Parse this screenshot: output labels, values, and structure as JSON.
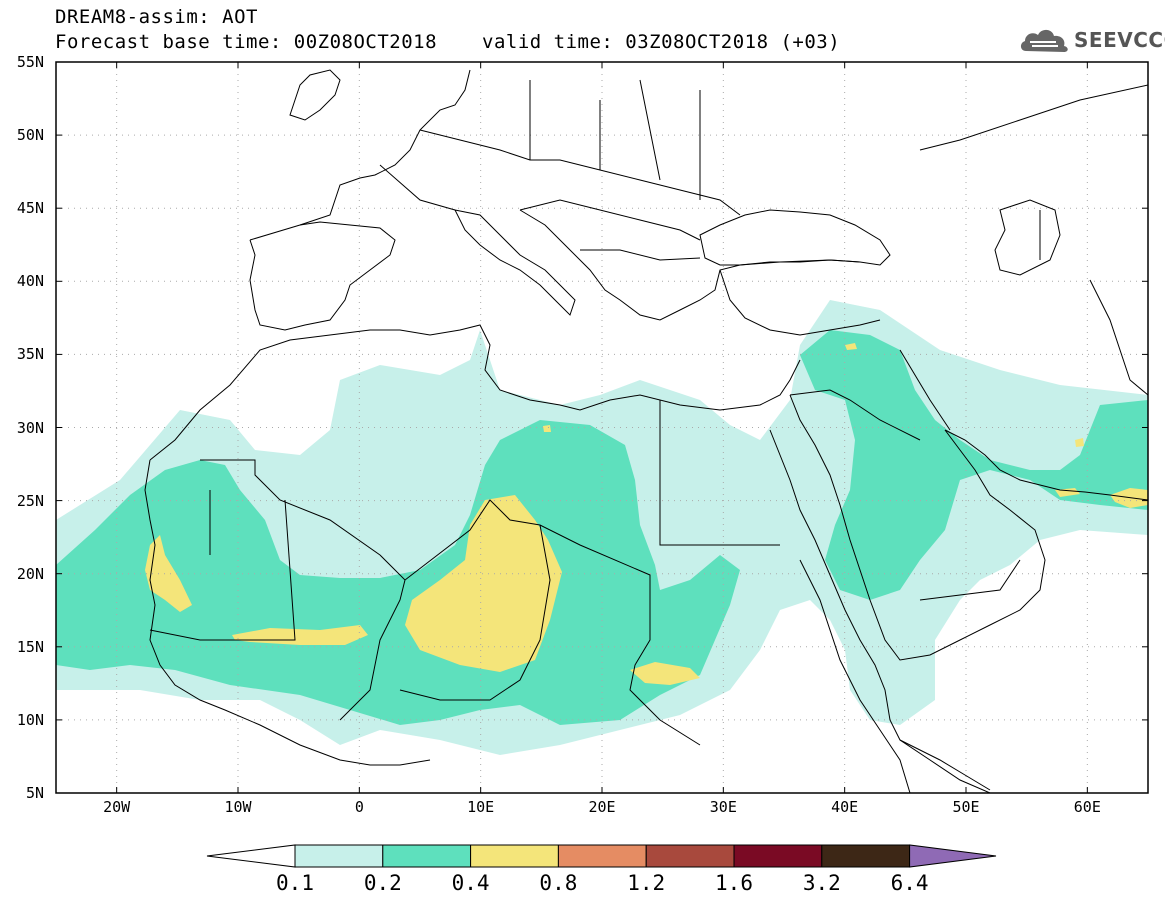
{
  "header": {
    "title": "DREAM8-assim: AOT",
    "base_time": "Forecast base time: 00Z08OCT2018",
    "valid_time": "valid time: 03Z08OCT2018 (+03)",
    "logo_text": "SEEVCCC"
  },
  "map": {
    "lon_range": [
      -25,
      65
    ],
    "lat_range": [
      5,
      55
    ],
    "lat_ticks": [
      "55N",
      "50N",
      "45N",
      "40N",
      "35N",
      "30N",
      "25N",
      "20N",
      "15N",
      "10N",
      "5N"
    ],
    "lon_ticks": [
      "20W",
      "10W",
      "0",
      "10E",
      "20E",
      "30E",
      "40E",
      "50E",
      "60E"
    ],
    "grid": "dotted"
  },
  "colorbar": {
    "labels": [
      "0.1",
      "0.2",
      "0.4",
      "0.8",
      "1.2",
      "1.6",
      "3.2",
      "6.4"
    ],
    "colors": [
      "#ffffff",
      "#c7f0ea",
      "#5ee0bd",
      "#f4e57a",
      "#e58c63",
      "#a8493d",
      "#7a0a24",
      "#3d2716",
      "#8f6ab5"
    ]
  }
}
